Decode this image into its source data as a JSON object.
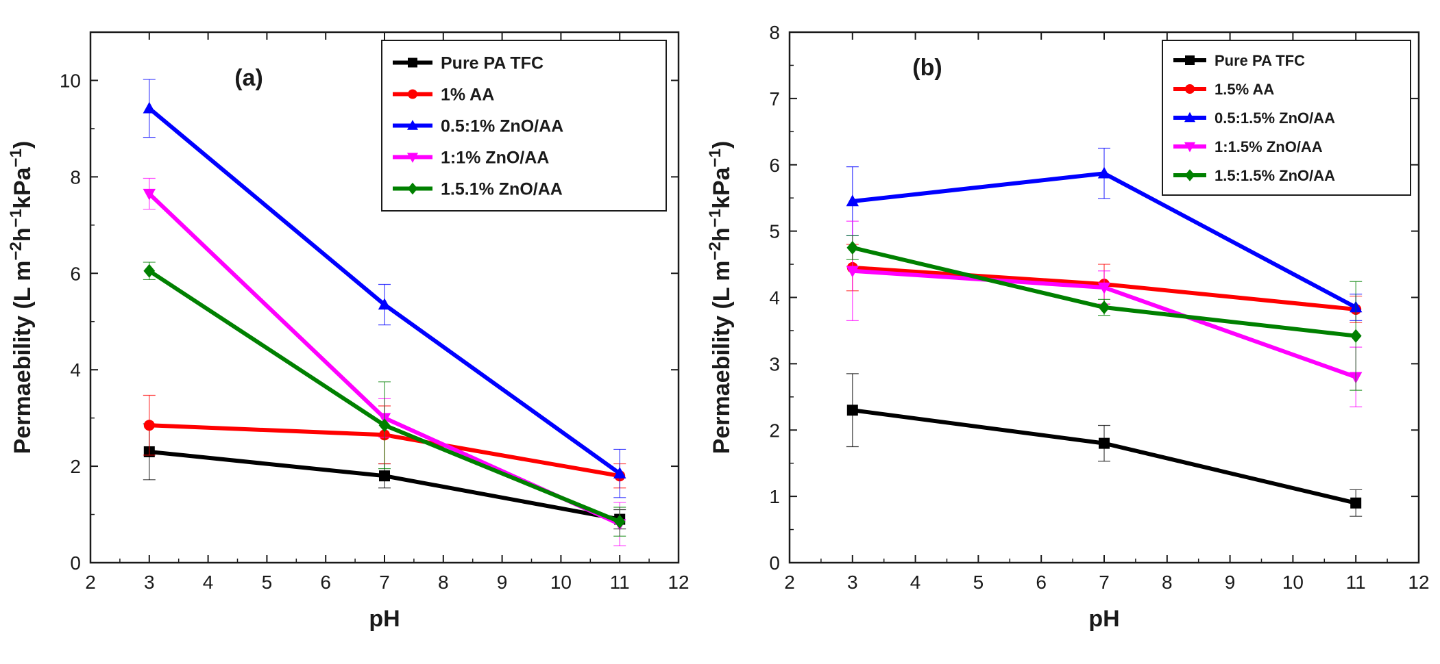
{
  "chart_data": [
    {
      "type": "line",
      "panel_label": "(a)",
      "xlabel": "pH",
      "ylabel_parts": [
        "Permaebility (L m",
        "−2",
        "h",
        "−1",
        "kPa",
        "−1",
        ")"
      ],
      "xlim": [
        2,
        12
      ],
      "ylim": [
        0,
        11
      ],
      "xticks": [
        2,
        3,
        4,
        5,
        6,
        7,
        8,
        9,
        10,
        11,
        12
      ],
      "yticks": [
        0,
        2,
        4,
        6,
        8,
        10
      ],
      "grid": false,
      "legend_position": "top-right",
      "x": [
        3,
        7,
        11
      ],
      "series": [
        {
          "name": "Pure PA TFC",
          "color": "#000000",
          "marker": "square",
          "values": [
            2.3,
            1.8,
            0.9
          ],
          "errors": [
            0.58,
            0.25,
            0.2
          ]
        },
        {
          "name": "1% AA",
          "color": "#ff0000",
          "marker": "circle",
          "values": [
            2.85,
            2.65,
            1.8
          ],
          "errors": [
            0.62,
            0.6,
            0.25
          ]
        },
        {
          "name": "0.5:1% ZnO/AA",
          "color": "#0000ff",
          "marker": "triangle-up",
          "values": [
            9.42,
            5.35,
            1.85
          ],
          "errors": [
            0.6,
            0.42,
            0.5
          ]
        },
        {
          "name": "1:1% ZnO/AA",
          "color": "#ff00ff",
          "marker": "triangle-down",
          "values": [
            7.65,
            3.0,
            0.8
          ],
          "errors": [
            0.32,
            0.4,
            0.45
          ]
        },
        {
          "name": "1.5.1% ZnO/AA",
          "color": "#008000",
          "marker": "diamond",
          "values": [
            6.05,
            2.85,
            0.85
          ],
          "errors": [
            0.18,
            0.9,
            0.3
          ]
        }
      ]
    },
    {
      "type": "line",
      "panel_label": "(b)",
      "xlabel": "pH",
      "ylabel_parts": [
        "Permaebility (L m",
        "−2",
        "h",
        "−1",
        "kPa",
        "−1",
        ")"
      ],
      "xlim": [
        2,
        12
      ],
      "ylim": [
        0,
        8
      ],
      "xticks": [
        2,
        3,
        4,
        5,
        6,
        7,
        8,
        9,
        10,
        11,
        12
      ],
      "yticks": [
        0,
        1,
        2,
        3,
        4,
        5,
        6,
        7,
        8
      ],
      "grid": false,
      "legend_position": "top-right",
      "x": [
        3,
        7,
        11
      ],
      "series": [
        {
          "name": "Pure PA TFC",
          "color": "#000000",
          "marker": "square",
          "values": [
            2.3,
            1.8,
            0.9
          ],
          "errors": [
            0.55,
            0.27,
            0.2
          ]
        },
        {
          "name": "1.5% AA",
          "color": "#ff0000",
          "marker": "circle",
          "values": [
            4.45,
            4.2,
            3.82
          ],
          "errors": [
            0.35,
            0.3,
            0.2
          ]
        },
        {
          "name": "0.5:1.5% ZnO/AA",
          "color": "#0000ff",
          "marker": "triangle-up",
          "values": [
            5.45,
            5.87,
            3.85
          ],
          "errors": [
            0.52,
            0.38,
            0.2
          ]
        },
        {
          "name": "1:1.5% ZnO/AA",
          "color": "#ff00ff",
          "marker": "triangle-down",
          "values": [
            4.4,
            4.15,
            2.8
          ],
          "errors": [
            0.75,
            0.25,
            0.45
          ]
        },
        {
          "name": "1.5:1.5% ZnO/AA",
          "color": "#008000",
          "marker": "diamond",
          "values": [
            4.75,
            3.85,
            3.42
          ],
          "errors": [
            0.18,
            0.12,
            0.82
          ]
        }
      ]
    }
  ]
}
